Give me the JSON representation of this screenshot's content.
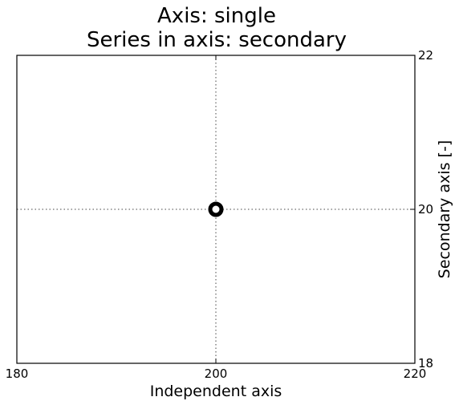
{
  "chart_data": {
    "type": "scatter",
    "title_lines": [
      "Axis: single",
      "Series in axis: secondary"
    ],
    "xlabel": "Independent axis",
    "ylabel": "",
    "y2label": "Secondary axis [-]",
    "xlim": [
      180,
      220
    ],
    "y2lim": [
      18,
      22
    ],
    "xticks": [
      180,
      200,
      220
    ],
    "xtick_labels": [
      "180",
      "200",
      "220"
    ],
    "y2ticks": [
      18,
      20,
      22
    ],
    "y2tick_labels": [
      "18",
      "20",
      "22"
    ],
    "grid": true,
    "series": [
      {
        "axis": "secondary",
        "marker": "circle-hollow",
        "color": "#000000",
        "points": [
          {
            "x": 200,
            "y": 20
          }
        ]
      }
    ]
  }
}
